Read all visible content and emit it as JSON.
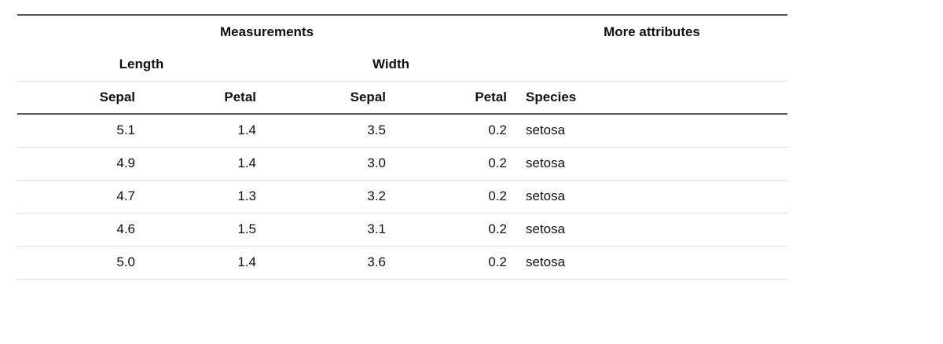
{
  "header": {
    "groups": [
      "Measurements",
      "More attributes"
    ],
    "subgroups": [
      "Length",
      "Width"
    ]
  },
  "columns": [
    "Sepal",
    "Petal",
    "Sepal",
    "Petal",
    "Species"
  ],
  "rows": [
    [
      "5.1",
      "1.4",
      "3.5",
      "0.2",
      "setosa"
    ],
    [
      "4.9",
      "1.4",
      "3.0",
      "0.2",
      "setosa"
    ],
    [
      "4.7",
      "1.3",
      "3.2",
      "0.2",
      "setosa"
    ],
    [
      "4.6",
      "1.5",
      "3.1",
      "0.2",
      "setosa"
    ],
    [
      "5.0",
      "1.4",
      "3.6",
      "0.2",
      "setosa"
    ]
  ]
}
